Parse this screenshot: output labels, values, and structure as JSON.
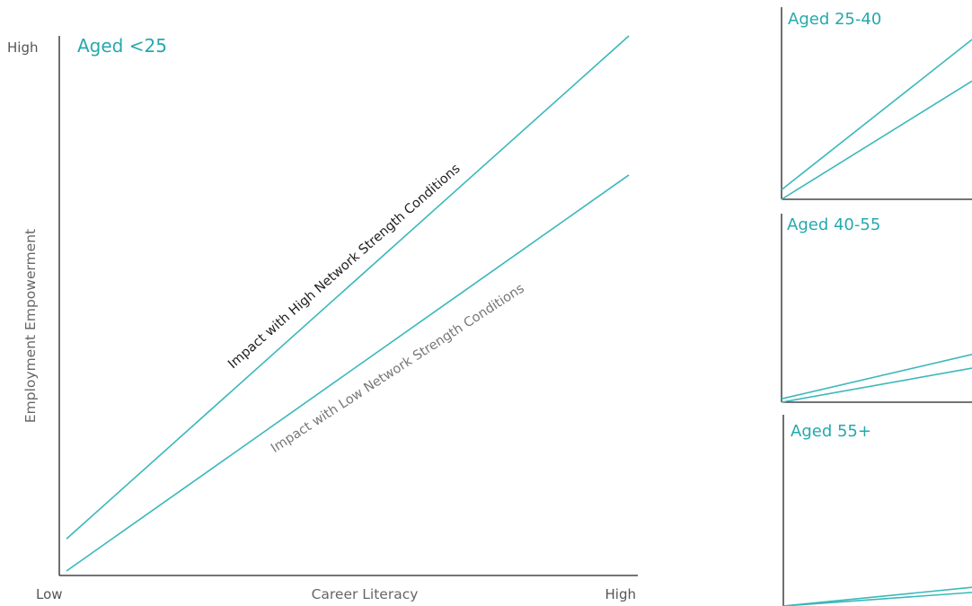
{
  "chart_data": [
    {
      "type": "line",
      "title": "Aged <25",
      "xlabel": "Career Literacy",
      "ylabel": "Employment Empowerment",
      "x_ticks": [
        "Low",
        "High"
      ],
      "y_ticks": [
        "Low",
        "High"
      ],
      "xlim": [
        0,
        1
      ],
      "ylim": [
        0,
        1
      ],
      "x": [
        0,
        1
      ],
      "series": [
        {
          "name": "Impact with High Network Strength Conditions",
          "values": [
            0.06,
            1.0
          ]
        },
        {
          "name": "Impact with Low Network Strength Conditions",
          "values": [
            0.0,
            0.74
          ]
        }
      ],
      "color": "#3bb8bb"
    },
    {
      "type": "line",
      "title": "Aged 25-40",
      "xlim": [
        0,
        1
      ],
      "ylim": [
        0,
        1
      ],
      "x": [
        0,
        1
      ],
      "series": [
        {
          "values": [
            0.06,
            1.0
          ]
        },
        {
          "values": [
            0.0,
            0.74
          ]
        }
      ],
      "color": "#3bb8bb"
    },
    {
      "type": "line",
      "title": "Aged 40-55",
      "xlim": [
        0,
        1
      ],
      "ylim": [
        0,
        1
      ],
      "x": [
        0,
        1
      ],
      "series": [
        {
          "values": [
            0.02,
            0.28
          ]
        },
        {
          "values": [
            0.0,
            0.2
          ]
        }
      ],
      "color": "#3bb8bb"
    },
    {
      "type": "line",
      "title": "Aged 55+",
      "xlim": [
        0,
        1
      ],
      "ylim": [
        0,
        1
      ],
      "x": [
        0,
        1
      ],
      "series": [
        {
          "values": [
            0.0,
            0.11
          ]
        },
        {
          "values": [
            0.0,
            0.08
          ]
        }
      ],
      "color": "#3bb8bb"
    }
  ]
}
